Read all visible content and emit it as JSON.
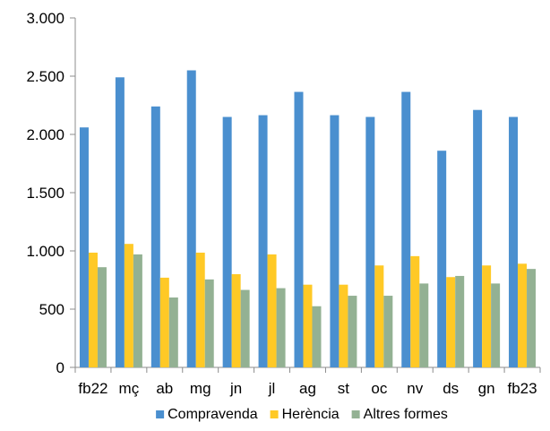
{
  "chart_data": {
    "type": "bar",
    "title": "",
    "xlabel": "",
    "ylabel": "",
    "categories": [
      "fb22",
      "mç",
      "ab",
      "mg",
      "jn",
      "jl",
      "ag",
      "st",
      "oc",
      "nv",
      "ds",
      "gn",
      "fb23"
    ],
    "ylim": [
      0,
      3000
    ],
    "yticks": [
      0,
      500,
      1000,
      1500,
      2000,
      2500,
      3000
    ],
    "ytick_labels": [
      "0",
      "500",
      "1.000",
      "1.500",
      "2.000",
      "2.500",
      "3.000"
    ],
    "grid": false,
    "legend_position": "bottom",
    "series": [
      {
        "name": "Compravenda",
        "color": "#4A8FCF",
        "values": [
          2060,
          2490,
          2240,
          2550,
          2150,
          2165,
          2365,
          2165,
          2150,
          2365,
          1860,
          2210,
          2150
        ]
      },
      {
        "name": "Herència",
        "color": "#FFC926",
        "values": [
          985,
          1060,
          770,
          985,
          800,
          970,
          710,
          710,
          875,
          955,
          775,
          875,
          890
        ]
      },
      {
        "name": "Altres formes",
        "color": "#93B193",
        "values": [
          860,
          970,
          600,
          755,
          665,
          680,
          525,
          615,
          615,
          720,
          785,
          720,
          845
        ]
      }
    ]
  }
}
